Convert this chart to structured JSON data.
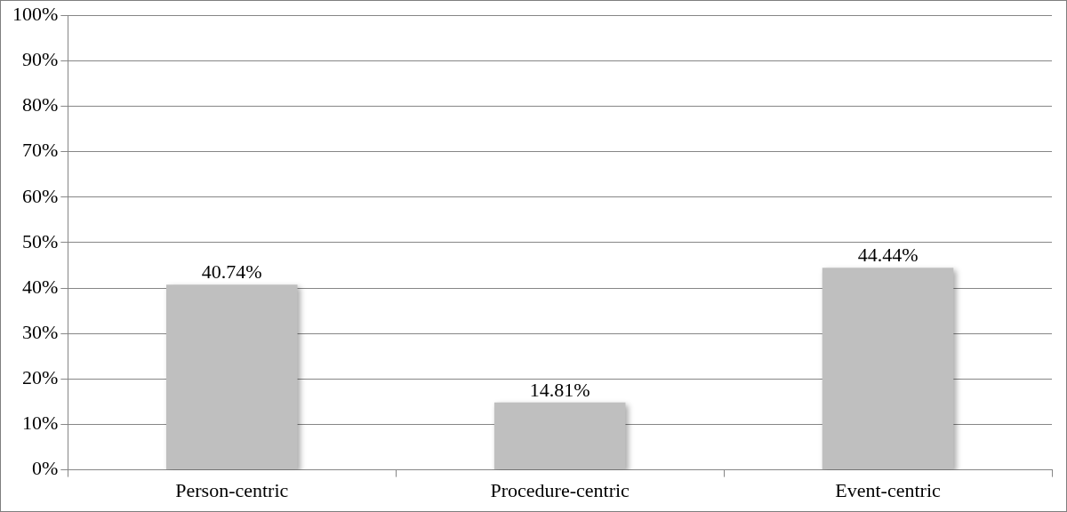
{
  "chart_data": {
    "type": "bar",
    "categories": [
      "Person-centric",
      "Procedure-centric",
      "Event-centric"
    ],
    "values": [
      40.74,
      14.81,
      44.44
    ],
    "color": "#bfbfbf",
    "value_labels": [
      "40.74%",
      "14.81%",
      "44.44%"
    ],
    "ylim": [
      0,
      100
    ],
    "yticks": [
      {
        "value": 0,
        "label": "0%"
      },
      {
        "value": 10,
        "label": "10%"
      },
      {
        "value": 20,
        "label": "20%"
      },
      {
        "value": 30,
        "label": "30%"
      },
      {
        "value": 40,
        "label": "40%"
      },
      {
        "value": 50,
        "label": "50%"
      },
      {
        "value": 60,
        "label": "60%"
      },
      {
        "value": 70,
        "label": "70%"
      },
      {
        "value": 80,
        "label": "80%"
      },
      {
        "value": 90,
        "label": "90%"
      },
      {
        "value": 100,
        "label": "100%"
      }
    ],
    "grid": "y",
    "legend": false
  }
}
